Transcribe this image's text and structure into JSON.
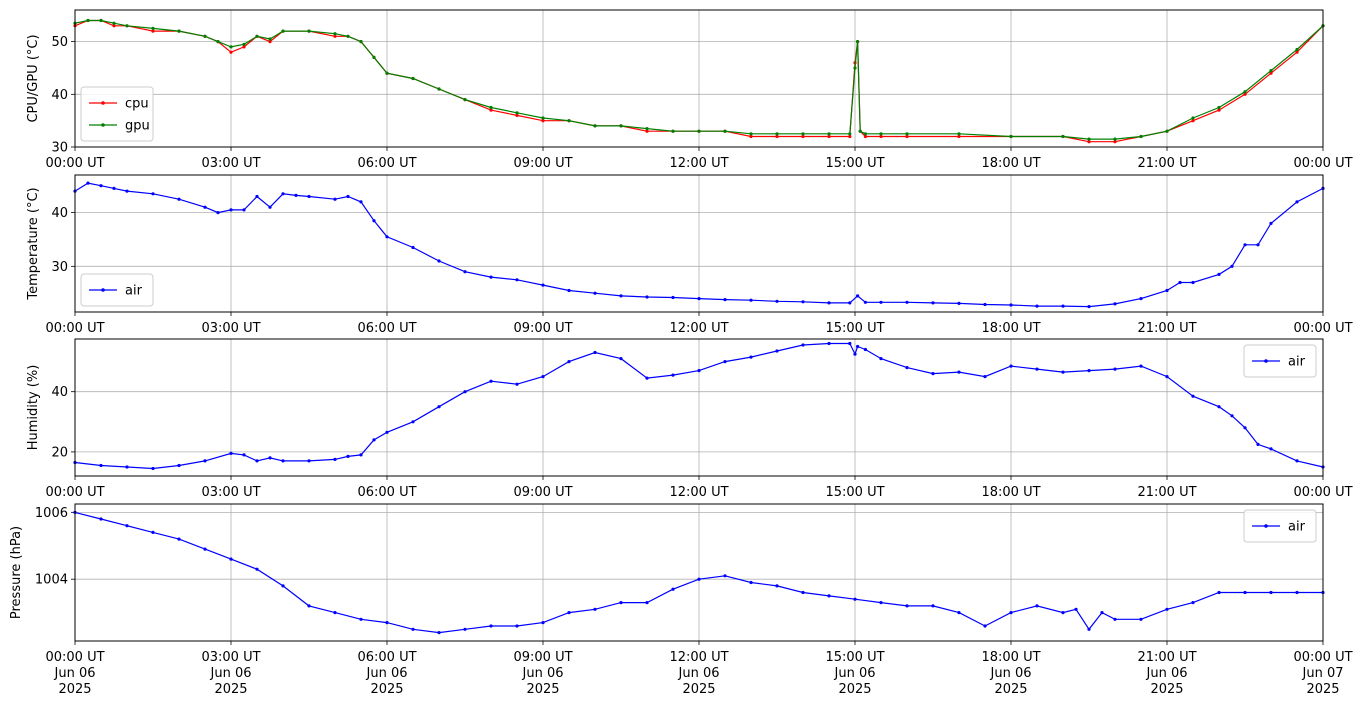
{
  "chart_data": [
    {
      "type": "line",
      "ylabel": "CPU/GPU (°C)",
      "ylim": [
        30,
        56
      ],
      "yticks": [
        "30",
        "40",
        "50"
      ],
      "xticks": [
        "00:00 UT",
        "03:00 UT",
        "06:00 UT",
        "09:00 UT",
        "12:00 UT",
        "15:00 UT",
        "18:00 UT",
        "21:00 UT",
        "00:00 UT"
      ],
      "grid": true,
      "legend_position": "lower-left",
      "x_unit": "hours since 00:00 UT Jun 06 2025",
      "series": [
        {
          "name": "cpu",
          "color": "#ff0000",
          "x": [
            0,
            0.25,
            0.5,
            0.75,
            1,
            1.5,
            2,
            2.5,
            2.75,
            3,
            3.25,
            3.5,
            3.75,
            4,
            4.5,
            5,
            5.25,
            5.5,
            5.75,
            6,
            6.5,
            7,
            7.5,
            8,
            8.5,
            9,
            9.5,
            10,
            10.5,
            11,
            11.5,
            12,
            12.5,
            13,
            13.5,
            14,
            14.5,
            14.9,
            15.0,
            15.05,
            15.1,
            15.2,
            15.5,
            16,
            17,
            18,
            19,
            19.5,
            20,
            20.5,
            21,
            21.5,
            22,
            22.5,
            23,
            23.5,
            24
          ],
          "values": [
            53,
            54,
            54,
            53,
            53,
            52,
            52,
            51,
            50,
            48,
            49,
            51,
            50,
            52,
            52,
            51,
            51,
            50,
            47,
            44,
            43,
            41,
            39,
            37,
            36,
            35,
            35,
            34,
            34,
            33,
            33,
            33,
            33,
            32,
            32,
            32,
            32,
            32,
            46,
            50,
            33,
            32,
            32,
            32,
            32,
            32,
            32,
            31,
            31,
            32,
            33,
            35,
            37,
            40,
            44,
            48,
            53
          ]
        },
        {
          "name": "gpu",
          "color": "#008000",
          "x": [
            0,
            0.25,
            0.5,
            0.75,
            1,
            1.5,
            2,
            2.5,
            2.75,
            3,
            3.25,
            3.5,
            3.75,
            4,
            4.5,
            5,
            5.25,
            5.5,
            5.75,
            6,
            6.5,
            7,
            7.5,
            8,
            8.5,
            9,
            9.5,
            10,
            10.5,
            11,
            11.5,
            12,
            12.5,
            13,
            13.5,
            14,
            14.5,
            14.9,
            15.0,
            15.05,
            15.1,
            15.2,
            15.5,
            16,
            17,
            18,
            19,
            19.5,
            20,
            20.5,
            21,
            21.5,
            22,
            22.5,
            23,
            23.5,
            24
          ],
          "values": [
            53.5,
            54,
            54,
            53.5,
            53,
            52.5,
            52,
            51,
            50,
            49,
            49.5,
            51,
            50.5,
            52,
            52,
            51.5,
            51,
            50,
            47,
            44,
            43,
            41,
            39,
            37.5,
            36.5,
            35.5,
            35,
            34,
            34,
            33.5,
            33,
            33,
            33,
            32.5,
            32.5,
            32.5,
            32.5,
            32.5,
            45,
            50,
            33,
            32.5,
            32.5,
            32.5,
            32.5,
            32,
            32,
            31.5,
            31.5,
            32,
            33,
            35.5,
            37.5,
            40.5,
            44.5,
            48.5,
            53
          ]
        }
      ]
    },
    {
      "type": "line",
      "ylabel": "Temperature (°C)",
      "ylim": [
        21.5,
        47
      ],
      "yticks": [
        "30",
        "40"
      ],
      "xticks": [
        "00:00 UT",
        "03:00 UT",
        "06:00 UT",
        "09:00 UT",
        "12:00 UT",
        "15:00 UT",
        "18:00 UT",
        "21:00 UT",
        "00:00 UT"
      ],
      "grid": true,
      "legend_position": "lower-left",
      "series": [
        {
          "name": "air",
          "color": "#0000ff",
          "x": [
            0,
            0.25,
            0.5,
            0.75,
            1,
            1.5,
            2,
            2.5,
            2.75,
            3,
            3.25,
            3.5,
            3.75,
            4,
            4.25,
            4.5,
            5,
            5.25,
            5.5,
            5.75,
            6,
            6.5,
            7,
            7.5,
            8,
            8.5,
            9,
            9.5,
            10,
            10.5,
            11,
            11.5,
            12,
            12.5,
            13,
            13.5,
            14,
            14.5,
            14.9,
            15.05,
            15.2,
            15.5,
            16,
            16.5,
            17,
            17.5,
            18,
            18.5,
            19,
            19.5,
            20,
            20.5,
            21,
            21.25,
            21.5,
            22,
            22.25,
            22.5,
            22.75,
            23,
            23.5,
            24
          ],
          "values": [
            44,
            45.5,
            45,
            44.5,
            44,
            43.5,
            42.5,
            41,
            40,
            40.5,
            40.5,
            43,
            41,
            43.5,
            43.2,
            43,
            42.5,
            43,
            42,
            38.5,
            35.5,
            33.5,
            31,
            29,
            28,
            27.5,
            26.5,
            25.5,
            25,
            24.5,
            24.3,
            24.2,
            24,
            23.8,
            23.7,
            23.5,
            23.4,
            23.2,
            23.2,
            24.5,
            23.3,
            23.3,
            23.3,
            23.2,
            23.1,
            22.9,
            22.8,
            22.6,
            22.6,
            22.5,
            23,
            24,
            25.5,
            27,
            27,
            28.5,
            30,
            34,
            34,
            38,
            42,
            44.5
          ]
        }
      ]
    },
    {
      "type": "line",
      "ylabel": "Humidity (%)",
      "ylim": [
        12,
        57.5
      ],
      "yticks": [
        "20",
        "40"
      ],
      "xticks": [
        "00:00 UT",
        "03:00 UT",
        "06:00 UT",
        "09:00 UT",
        "12:00 UT",
        "15:00 UT",
        "18:00 UT",
        "21:00 UT",
        "00:00 UT"
      ],
      "grid": true,
      "legend_position": "upper-right",
      "series": [
        {
          "name": "air",
          "color": "#0000ff",
          "x": [
            0,
            0.5,
            1,
            1.5,
            2,
            2.5,
            3,
            3.25,
            3.5,
            3.75,
            4,
            4.5,
            5,
            5.25,
            5.5,
            5.75,
            6,
            6.5,
            7,
            7.5,
            8,
            8.5,
            9,
            9.5,
            10,
            10.5,
            11,
            11.5,
            12,
            12.5,
            13,
            13.5,
            14,
            14.5,
            14.9,
            15.0,
            15.05,
            15.2,
            15.5,
            16,
            16.5,
            17,
            17.5,
            18,
            18.5,
            19,
            19.5,
            20,
            20.5,
            21,
            21.5,
            22,
            22.25,
            22.5,
            22.75,
            23,
            23.5,
            24
          ],
          "values": [
            16.5,
            15.5,
            15,
            14.5,
            15.5,
            17,
            19.5,
            19,
            17,
            18,
            17,
            17,
            17.5,
            18.5,
            19,
            24,
            26.5,
            30,
            35,
            40,
            43.5,
            42.5,
            45,
            50,
            53,
            51,
            44.5,
            45.5,
            47,
            50,
            51.5,
            53.5,
            55.5,
            56,
            56,
            52.5,
            55,
            54,
            51,
            48,
            46,
            46.5,
            45,
            48.5,
            47.5,
            46.5,
            47,
            47.5,
            48.5,
            45,
            38.5,
            35,
            32,
            28,
            22.5,
            21,
            17,
            15
          ]
        }
      ]
    },
    {
      "type": "line",
      "ylabel": "Pressure (hPa)",
      "ylim": [
        1002.15,
        1006.25
      ],
      "yticks": [
        "1004",
        "1006"
      ],
      "xticks": [
        "00:00 UT\nJun 06\n2025",
        "03:00 UT\nJun 06\n2025",
        "06:00 UT\nJun 06\n2025",
        "09:00 UT\nJun 06\n2025",
        "12:00 UT\nJun 06\n2025",
        "15:00 UT\nJun 06\n2025",
        "18:00 UT\nJun 06\n2025",
        "21:00 UT\nJun 06\n2025",
        "00:00 UT\nJun 07\n2025"
      ],
      "grid": true,
      "legend_position": "upper-right",
      "series": [
        {
          "name": "air",
          "color": "#0000ff",
          "x": [
            0,
            0.5,
            1,
            1.5,
            2,
            2.5,
            3,
            3.5,
            4,
            4.5,
            5,
            5.5,
            6,
            6.5,
            7,
            7.5,
            8,
            8.5,
            9,
            9.5,
            10,
            10.5,
            11,
            11.5,
            12,
            12.5,
            13,
            13.5,
            14,
            14.5,
            15,
            15.5,
            16,
            16.5,
            17,
            17.5,
            18,
            18.5,
            19,
            19.25,
            19.5,
            19.75,
            20,
            20.5,
            21,
            21.5,
            22,
            22.5,
            23,
            23.5,
            24
          ],
          "values": [
            1006,
            1005.8,
            1005.6,
            1005.4,
            1005.2,
            1004.9,
            1004.6,
            1004.3,
            1003.8,
            1003.2,
            1003,
            1002.8,
            1002.7,
            1002.5,
            1002.4,
            1002.5,
            1002.6,
            1002.6,
            1002.7,
            1003,
            1003.1,
            1003.3,
            1003.3,
            1003.7,
            1004,
            1004.1,
            1003.9,
            1003.8,
            1003.6,
            1003.5,
            1003.4,
            1003.3,
            1003.2,
            1003.2,
            1003.0,
            1002.6,
            1003.0,
            1003.2,
            1003.0,
            1003.1,
            1002.5,
            1003.0,
            1002.8,
            1002.8,
            1003.1,
            1003.3,
            1003.6,
            1003.6,
            1003.6,
            1003.6,
            1003.6
          ]
        }
      ]
    }
  ]
}
